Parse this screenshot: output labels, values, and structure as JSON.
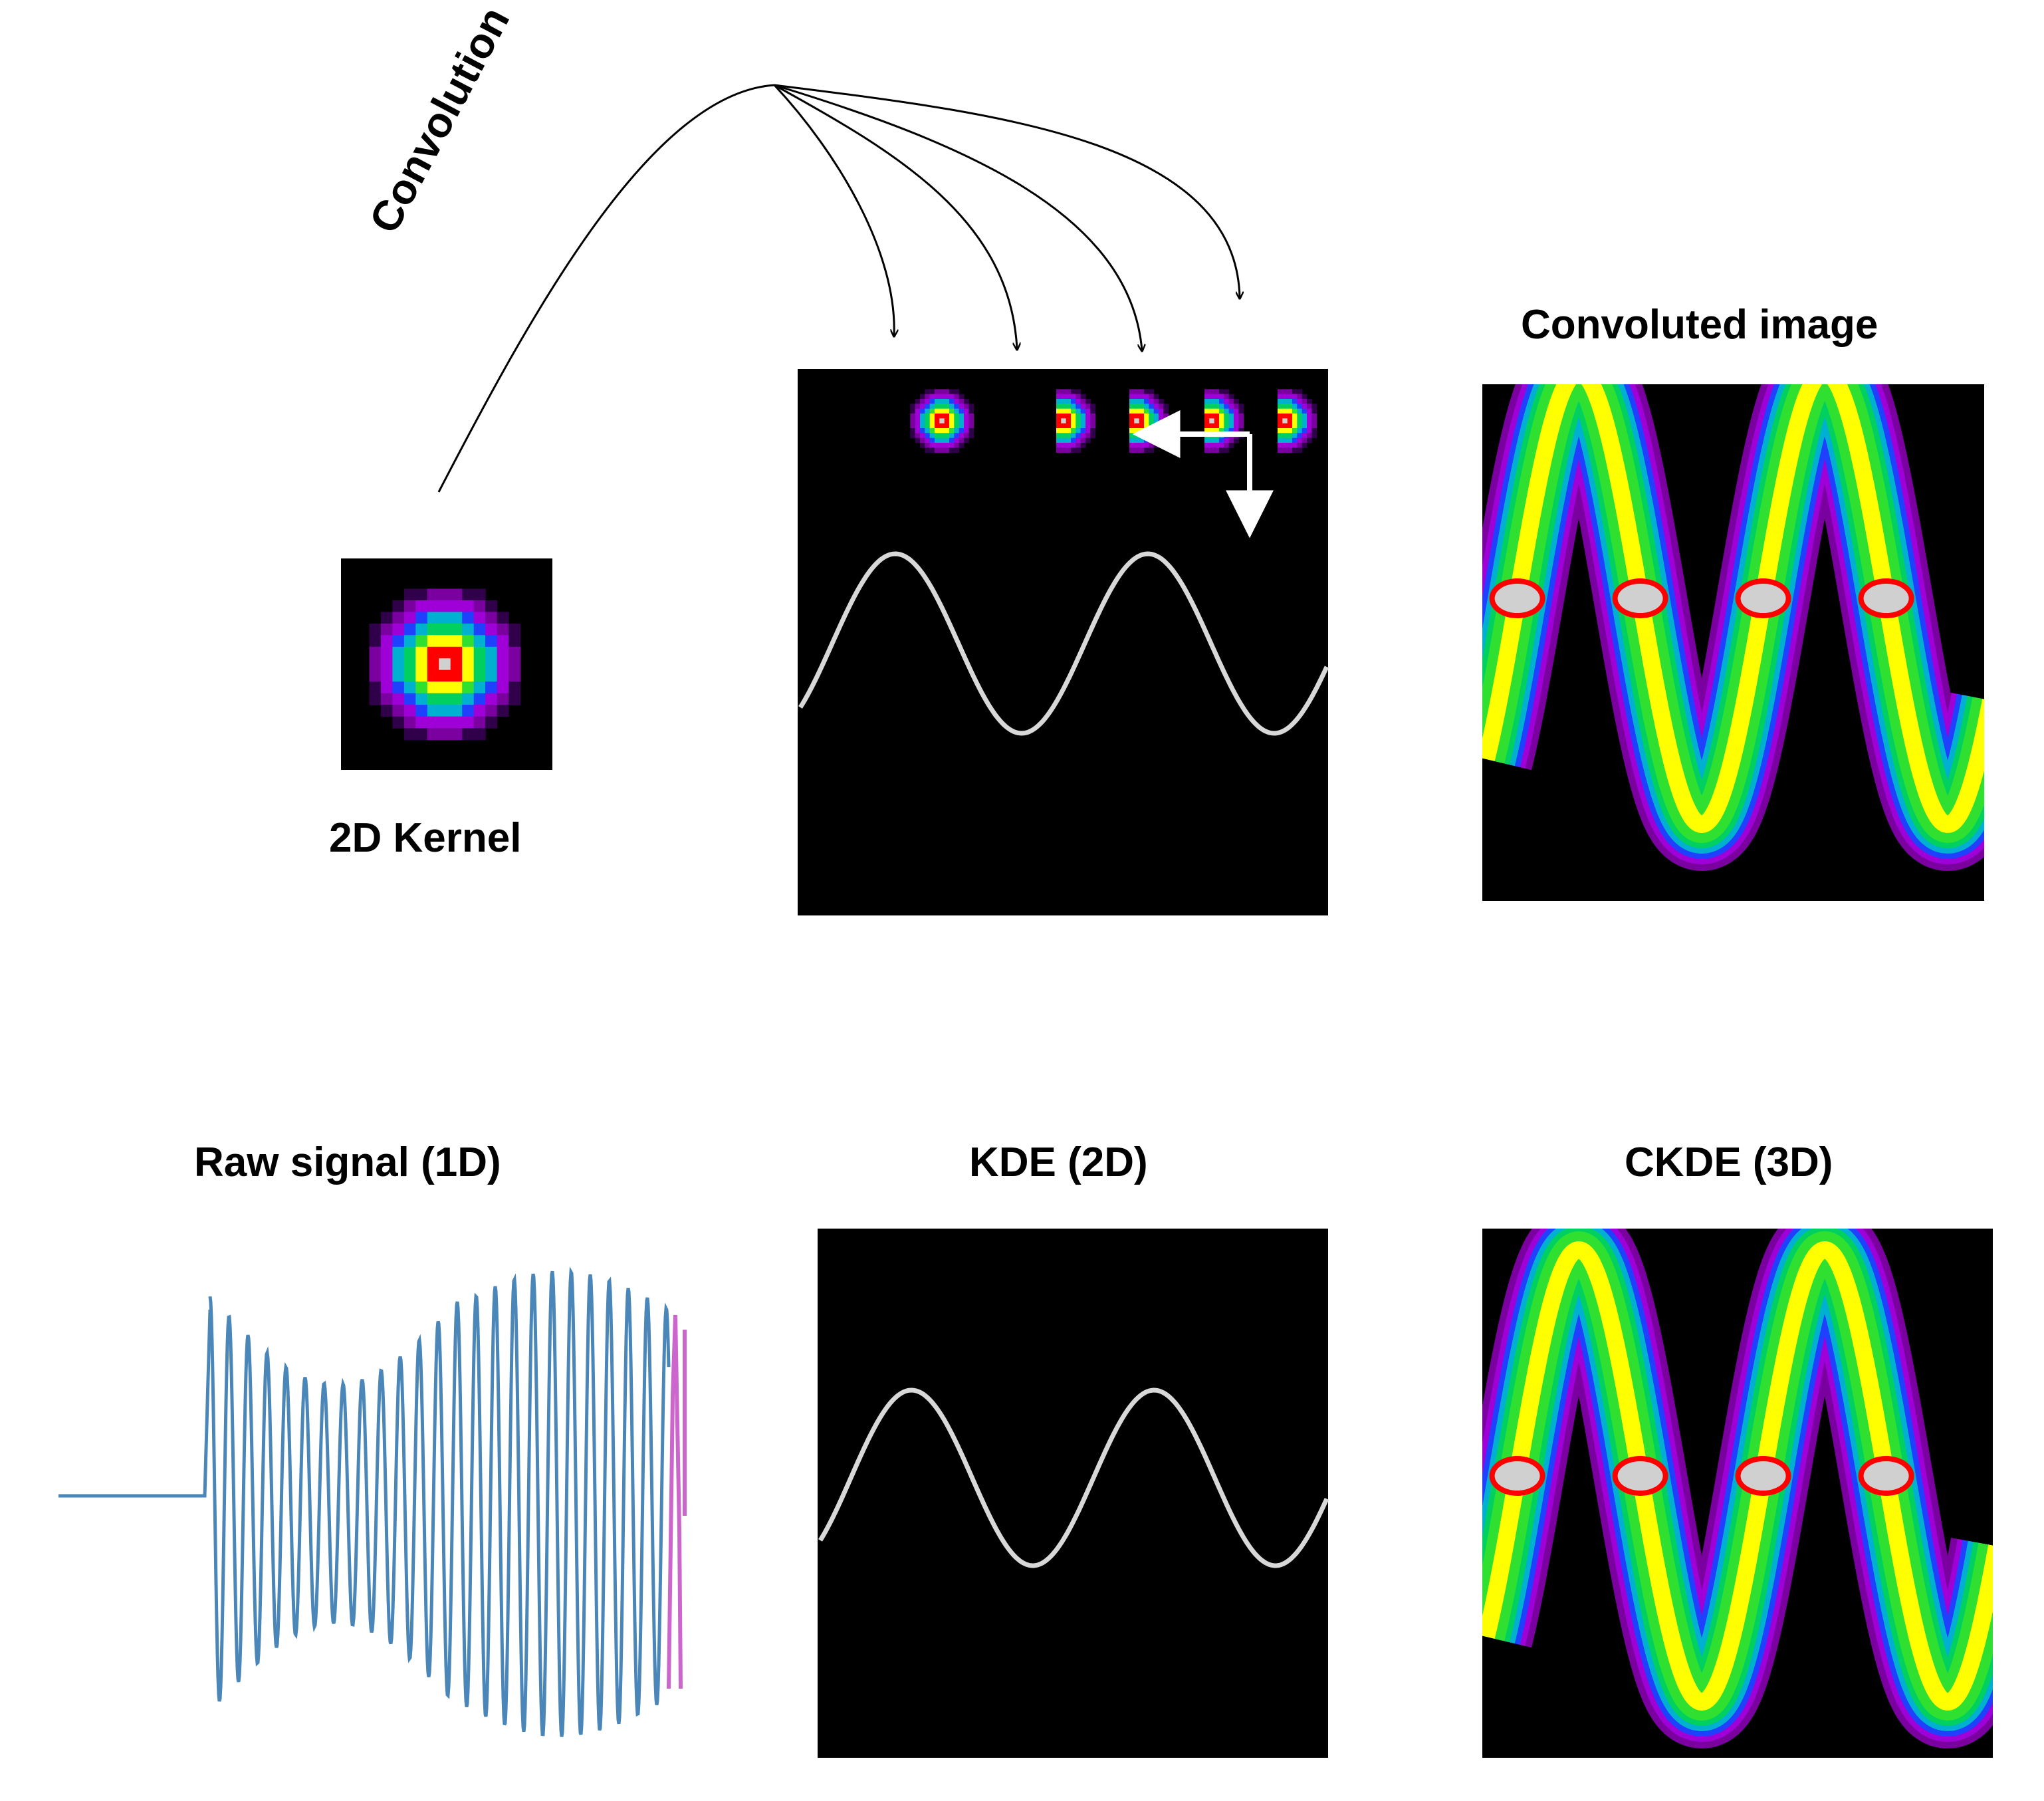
{
  "labels": {
    "convolution": "Convolution",
    "kernel": "2D Kernel",
    "convoluted_image": "Convoluted image",
    "raw_signal": "Raw signal (1D)",
    "kde": "KDE (2D)",
    "ckde": "CKDE (3D)"
  },
  "colors": {
    "background": "#ffffff",
    "panel_background": "#000000",
    "signal_trace": "#d8d8d8",
    "raw_signal": "#4a86b8",
    "raw_signal_tail": "#cc66cc",
    "arrows": "#000000",
    "scan_arrows": "#ffffff"
  },
  "colormap": [
    "#000000",
    "#30004a",
    "#7a00a0",
    "#a000d8",
    "#2040ff",
    "#00b0d0",
    "#00d060",
    "#30e030",
    "#ffff00",
    "#ff0000",
    "#d0d0d0"
  ]
}
